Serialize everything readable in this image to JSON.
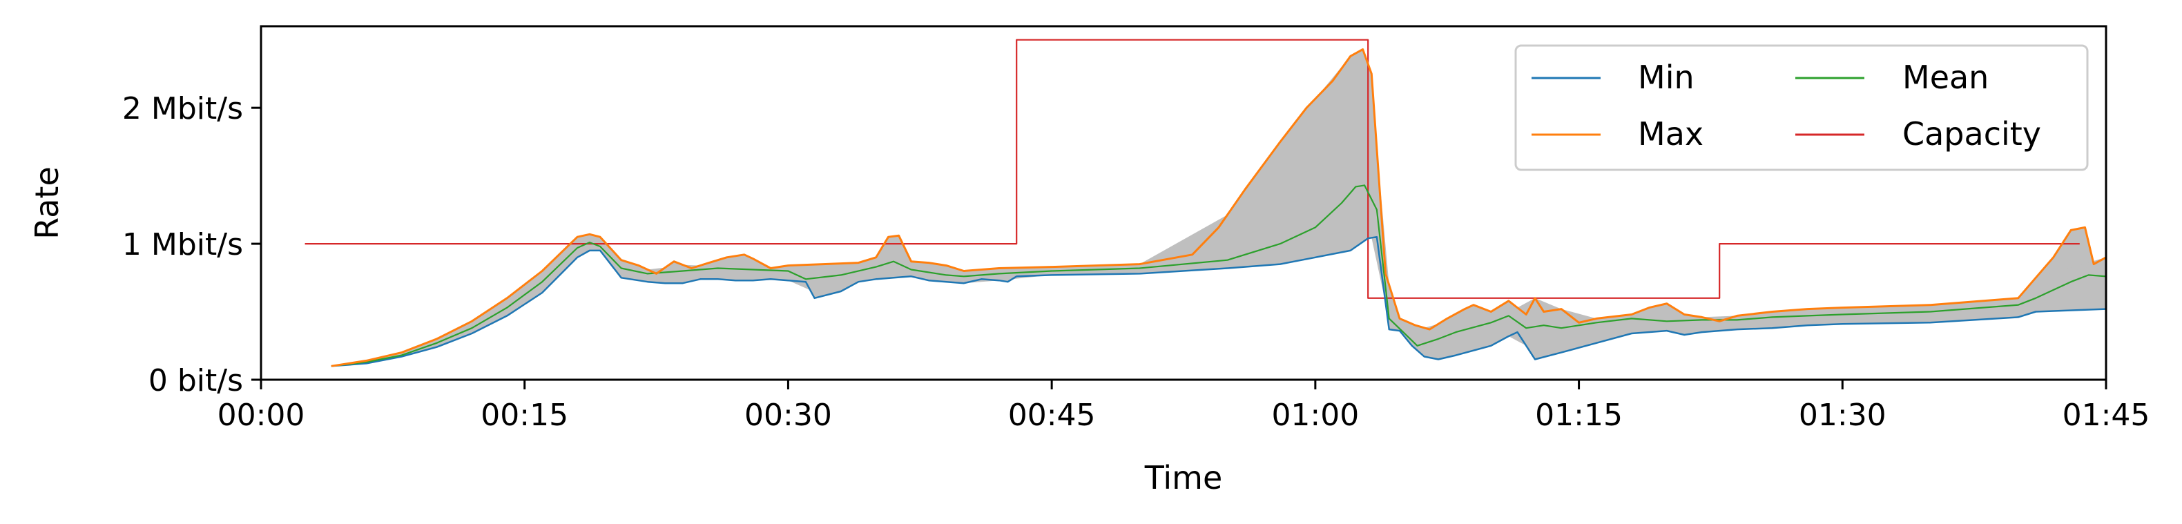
{
  "chart_data": {
    "type": "line",
    "xlabel": "Time",
    "ylabel": "Rate",
    "x_unit": "minutes",
    "y_unit": "Mbit/s",
    "xlim": [
      0,
      105
    ],
    "ylim": [
      0,
      2.6
    ],
    "x_ticks": [
      {
        "value": 0,
        "label": "00:00"
      },
      {
        "value": 15,
        "label": "00:15"
      },
      {
        "value": 30,
        "label": "00:30"
      },
      {
        "value": 45,
        "label": "00:45"
      },
      {
        "value": 60,
        "label": "01:00"
      },
      {
        "value": 75,
        "label": "01:15"
      },
      {
        "value": 90,
        "label": "01:30"
      },
      {
        "value": 105,
        "label": "01:45"
      }
    ],
    "y_ticks": [
      {
        "value": 0,
        "label": "0 bit/s"
      },
      {
        "value": 1,
        "label": "1 Mbit/s"
      },
      {
        "value": 2,
        "label": "2 Mbit/s"
      }
    ],
    "grid": false,
    "legend_position": "top-right",
    "legend_columns": 2,
    "fill_between": {
      "lower": "Min",
      "upper": "Max",
      "color": "#bfbfbf"
    },
    "series": [
      {
        "name": "Min",
        "color": "#1f77b4",
        "x": [
          4,
          6,
          8,
          10,
          12,
          14,
          16,
          18,
          18.7,
          19.3,
          20.5,
          22,
          23,
          24,
          25,
          26,
          27,
          28,
          29,
          30,
          31,
          31.5,
          33,
          34,
          35,
          36,
          37,
          38,
          39,
          40,
          41,
          42,
          42.5,
          43,
          45,
          50,
          55,
          58,
          60,
          62,
          63,
          63.5,
          64.2,
          64.8,
          65.5,
          66.2,
          67,
          68,
          70,
          71,
          71.5,
          72.5,
          74,
          76,
          78,
          80,
          81,
          82,
          84,
          86,
          88,
          90,
          95,
          100,
          101,
          105
        ],
        "y": [
          0.1,
          0.12,
          0.17,
          0.24,
          0.34,
          0.47,
          0.64,
          0.9,
          0.95,
          0.95,
          0.75,
          0.72,
          0.71,
          0.71,
          0.74,
          0.74,
          0.73,
          0.73,
          0.74,
          0.73,
          0.72,
          0.6,
          0.65,
          0.72,
          0.74,
          0.75,
          0.76,
          0.73,
          0.72,
          0.71,
          0.74,
          0.73,
          0.72,
          0.76,
          0.77,
          0.78,
          0.82,
          0.85,
          0.9,
          0.95,
          1.04,
          1.05,
          0.37,
          0.36,
          0.25,
          0.17,
          0.15,
          0.18,
          0.25,
          0.32,
          0.35,
          0.15,
          0.2,
          0.27,
          0.34,
          0.36,
          0.33,
          0.35,
          0.37,
          0.38,
          0.4,
          0.41,
          0.42,
          0.46,
          0.5,
          0.52
        ]
      },
      {
        "name": "Max",
        "color": "#ff7f0e",
        "x": [
          4,
          6,
          8,
          10,
          12,
          14,
          16,
          18,
          18.7,
          19.3,
          20.5,
          21.5,
          22.5,
          23.5,
          24.5,
          25.5,
          26.5,
          27.5,
          28,
          29,
          30,
          32,
          34,
          35,
          35.7,
          36.3,
          37,
          38,
          39,
          40,
          42,
          45,
          50,
          53,
          54.5,
          56,
          58,
          59.5,
          61,
          62,
          62.7,
          63.2,
          64,
          64.8,
          65.7,
          66.5,
          67.5,
          68.5,
          69,
          70,
          71,
          72,
          72.5,
          73,
          74,
          75,
          76,
          78,
          79,
          80,
          81,
          82,
          83,
          84,
          86,
          88,
          90,
          95,
          100,
          101,
          102,
          103,
          103.8,
          104.3,
          105
        ],
        "y": [
          0.1,
          0.14,
          0.2,
          0.3,
          0.43,
          0.6,
          0.8,
          1.05,
          1.07,
          1.05,
          0.88,
          0.84,
          0.78,
          0.87,
          0.82,
          0.86,
          0.9,
          0.92,
          0.89,
          0.82,
          0.84,
          0.85,
          0.86,
          0.9,
          1.05,
          1.06,
          0.87,
          0.86,
          0.84,
          0.8,
          0.82,
          0.83,
          0.85,
          0.92,
          1.12,
          1.4,
          1.75,
          2.0,
          2.2,
          2.38,
          2.43,
          2.25,
          0.78,
          0.45,
          0.4,
          0.37,
          0.45,
          0.52,
          0.55,
          0.5,
          0.58,
          0.48,
          0.6,
          0.5,
          0.52,
          0.42,
          0.45,
          0.48,
          0.53,
          0.56,
          0.48,
          0.46,
          0.43,
          0.47,
          0.5,
          0.52,
          0.53,
          0.55,
          0.6,
          0.75,
          0.9,
          1.1,
          1.12,
          0.85,
          0.9
        ]
      },
      {
        "name": "Mean",
        "color": "#2ca02c",
        "x": [
          4,
          6,
          8,
          10,
          12,
          14,
          16,
          18,
          18.7,
          19.3,
          20.5,
          22,
          24,
          26,
          28,
          30,
          31,
          33,
          35,
          36,
          37,
          39,
          40,
          42,
          45,
          50,
          55,
          58,
          60,
          61.5,
          62.3,
          62.8,
          63.5,
          64.2,
          65,
          65.8,
          67,
          68,
          70,
          71,
          72,
          73,
          74,
          76,
          78,
          80,
          82,
          84,
          86,
          88,
          90,
          95,
          100,
          101,
          103,
          104,
          105
        ],
        "y": [
          0.1,
          0.13,
          0.18,
          0.27,
          0.38,
          0.53,
          0.72,
          0.97,
          1.01,
          0.98,
          0.82,
          0.78,
          0.8,
          0.82,
          0.81,
          0.8,
          0.74,
          0.77,
          0.83,
          0.87,
          0.81,
          0.77,
          0.76,
          0.78,
          0.8,
          0.82,
          0.88,
          1.0,
          1.12,
          1.3,
          1.42,
          1.43,
          1.25,
          0.45,
          0.35,
          0.25,
          0.3,
          0.35,
          0.42,
          0.47,
          0.38,
          0.4,
          0.38,
          0.42,
          0.45,
          0.43,
          0.44,
          0.44,
          0.46,
          0.47,
          0.48,
          0.5,
          0.55,
          0.6,
          0.72,
          0.77,
          0.76
        ]
      },
      {
        "name": "Capacity",
        "color": "#d62728",
        "x": [
          2.5,
          43,
          43,
          63,
          63,
          83,
          83,
          103.5
        ],
        "y": [
          1.0,
          1.0,
          2.5,
          2.5,
          0.6,
          0.6,
          1.0,
          1.0
        ]
      }
    ]
  }
}
